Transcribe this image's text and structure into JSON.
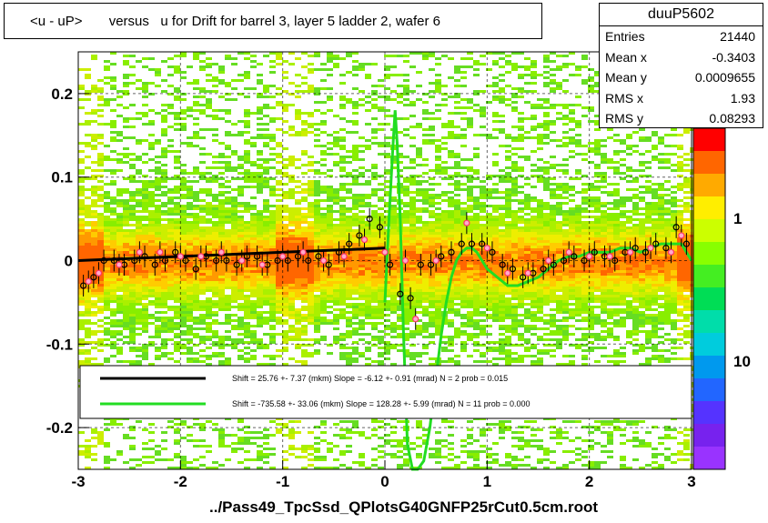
{
  "title": "<u - uP>       versus   u for Drift for barrel 3, layer 5 ladder 2, wafer 6",
  "stats": {
    "name": "duuP5602",
    "rows": [
      {
        "label": "Entries",
        "value": "21440"
      },
      {
        "label": "Mean x",
        "value": "-0.3403"
      },
      {
        "label": "Mean y",
        "value": "0.0009655"
      },
      {
        "label": "RMS x",
        "value": "1.93"
      },
      {
        "label": "RMS y",
        "value": "0.08293"
      }
    ]
  },
  "x_title": "../Pass49_TpcSsd_QPlotsG40GNFP25rCut0.5cm.root",
  "colors": {
    "black_fit": "#000000",
    "green_fit": "#22dd22",
    "points_open": "#000000",
    "points_red": "#ff3366"
  },
  "chart_data": {
    "type": "heatmap",
    "xlim": [
      -3,
      3
    ],
    "ylim": [
      -0.25,
      0.25
    ],
    "x_ticks": [
      "-3",
      "-2",
      "-1",
      "0",
      "1",
      "2",
      "3"
    ],
    "y_ticks": [
      "-0.2",
      "-0.1",
      "0",
      "0.1",
      "0.2"
    ],
    "z_scale": "log",
    "z_ticks": [
      "1",
      "10"
    ],
    "grid": true,
    "legend": [
      {
        "label": "Shift =    25.76 +- 7.37 (mkm) Slope =    -6.12 +- 0.91 (mrad)  N = 2 prob = 0.015",
        "color": "#000000"
      },
      {
        "label": "Shift =  -735.58 +- 33.06 (mkm) Slope =   128.28 +- 5.99 (mrad)  N = 11 prob = 0.000",
        "color": "#22dd22"
      }
    ],
    "profile_open": {
      "x": [
        -2.95,
        -2.85,
        -2.75,
        -2.65,
        -2.55,
        -2.45,
        -2.35,
        -2.25,
        -2.15,
        -2.05,
        -1.95,
        -1.85,
        -1.75,
        -1.65,
        -1.55,
        -1.45,
        -1.35,
        -1.25,
        -1.15,
        -1.05,
        -0.95,
        -0.85,
        -0.75,
        -0.65,
        -0.55,
        -0.45,
        -0.35,
        -0.25,
        -0.15,
        -0.05,
        0.05,
        0.15,
        0.25,
        0.35,
        0.45,
        0.55,
        0.65,
        0.75,
        0.85,
        0.95,
        1.05,
        1.15,
        1.25,
        1.35,
        1.45,
        1.55,
        1.65,
        1.75,
        1.85,
        1.95,
        2.05,
        2.15,
        2.25,
        2.35,
        2.45,
        2.55,
        2.65,
        2.75,
        2.85,
        2.95
      ],
      "y": [
        -0.03,
        -0.02,
        0.0,
        0.0,
        -0.005,
        0.0,
        0.005,
        -0.005,
        0.0,
        0.01,
        0.0,
        -0.01,
        0.005,
        0.0,
        0.0,
        -0.005,
        0.005,
        0.005,
        -0.005,
        0.0,
        0.0,
        0.005,
        0.0,
        0.005,
        -0.005,
        0.01,
        0.02,
        0.03,
        0.05,
        0.04,
        -0.005,
        -0.04,
        -0.045,
        -0.005,
        -0.005,
        0.005,
        0.01,
        0.02,
        0.02,
        0.02,
        0.01,
        -0.005,
        -0.01,
        -0.02,
        -0.015,
        -0.01,
        -0.005,
        0.0,
        0.005,
        0.0,
        0.01,
        0.005,
        0.0,
        0.01,
        0.015,
        0.01,
        0.02,
        0.015,
        0.04,
        0.02
      ]
    },
    "profile_red": {
      "x": [
        -2.9,
        -2.8,
        -2.6,
        -2.4,
        -2.2,
        -2.0,
        -1.8,
        -1.6,
        -1.4,
        -1.2,
        -1.0,
        -0.8,
        -0.6,
        -0.4,
        -0.2,
        0.0,
        0.2,
        0.3,
        0.5,
        0.8,
        1.0,
        1.2,
        1.4,
        1.6,
        1.8,
        2.0,
        2.2,
        2.4,
        2.6,
        2.8,
        2.9
      ],
      "y": [
        -0.025,
        -0.015,
        -0.005,
        0.01,
        0.01,
        0.005,
        0.005,
        0.01,
        0.0,
        -0.005,
        0.005,
        0.01,
        0.0,
        0.005,
        0.025,
        0.01,
        0.0,
        -0.07,
        0.0,
        0.045,
        0.015,
        -0.015,
        -0.015,
        0.0,
        0.01,
        0.005,
        0.005,
        0.01,
        0.015,
        0.01,
        0.03
      ]
    },
    "fit_black": {
      "x": [
        -3.0,
        0.0
      ],
      "y": [
        0.0,
        0.015
      ]
    },
    "fit_green": {
      "x": [
        0.0,
        0.04,
        0.08,
        0.1,
        0.12,
        0.15,
        0.18,
        0.22,
        0.27,
        0.32,
        0.38,
        0.44,
        0.5,
        0.55,
        0.6,
        0.65,
        0.7,
        0.75,
        0.8,
        0.85,
        0.9,
        0.95,
        1.0,
        1.1,
        1.2,
        1.3,
        1.4,
        1.5,
        1.6,
        1.7,
        1.8,
        1.9,
        2.0,
        2.1,
        2.2,
        2.3,
        2.4,
        2.5,
        2.6,
        2.7,
        2.8,
        2.9,
        3.0
      ],
      "y": [
        -0.05,
        0.05,
        0.14,
        0.18,
        0.14,
        0.05,
        -0.08,
        -0.22,
        -0.25,
        -0.25,
        -0.24,
        -0.2,
        -0.14,
        -0.09,
        -0.05,
        -0.02,
        0.0,
        0.01,
        0.015,
        0.015,
        0.01,
        0.0,
        -0.01,
        -0.02,
        -0.03,
        -0.03,
        -0.025,
        -0.02,
        -0.01,
        0.0,
        0.005,
        0.005,
        0.01,
        0.01,
        0.01,
        0.015,
        0.015,
        0.01,
        0.015,
        0.02,
        0.02,
        0.02,
        0.0
      ]
    }
  }
}
